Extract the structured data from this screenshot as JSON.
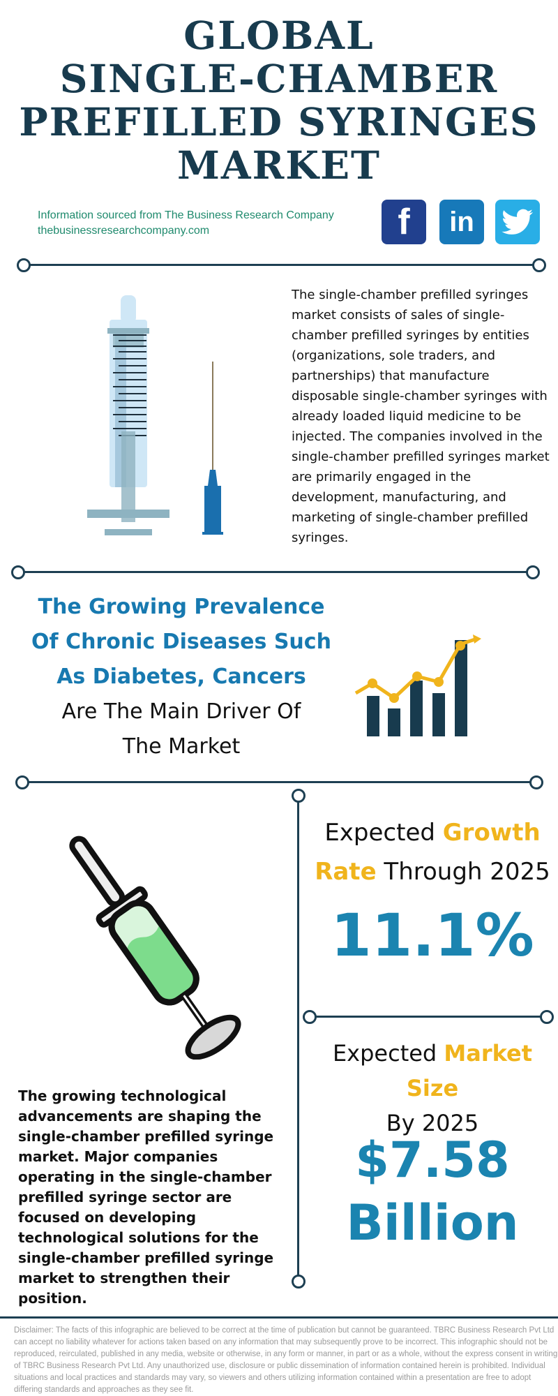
{
  "header": {
    "title_lines": [
      "GLOBAL",
      "SINGLE-CHAMBER",
      "PREFILLED SYRINGES",
      "MARKET"
    ],
    "source_line": "Information sourced from The Business Research Company",
    "source_url": "thebusinessresearchcompany.com"
  },
  "social": {
    "facebook": "f",
    "linkedin": "in",
    "twitter_icon": "twitter-bird-icon"
  },
  "description": "The single-chamber prefilled syringes market consists of sales of single-chamber prefilled syringes by entities (organizations, sole traders, and partnerships) that manufacture disposable single-chamber syringes with already loaded liquid medicine to be injected. The companies involved in the single-chamber prefilled syringes market are primarily engaged in the development, manufacturing, and marketing of single-chamber prefilled syringes.",
  "driver": {
    "highlight_lines": [
      "The Growing Prevalence",
      "Of Chronic Diseases Such",
      "As Diabetes, Cancers"
    ],
    "plain_lines": [
      "Are The Main Driver Of",
      "The Market"
    ]
  },
  "growth": {
    "label_pre": "Expected ",
    "label_highlight_1": "Growth",
    "label_highlight_2": "Rate",
    "label_post": " Through 2025",
    "value": "11.1%"
  },
  "market_size": {
    "label_pre": "Expected ",
    "label_highlight": "Market Size",
    "label_post": "By 2025",
    "value_line1": "$7.58",
    "value_line2": "Billion"
  },
  "technology_text": "The growing technological advancements are shaping the single-chamber prefilled syringe market. Major companies operating in the single-chamber prefilled syringe sector are focused on developing technological solutions for the single-chamber prefilled syringe market to strengthen their position.",
  "disclaimer": "Disclaimer: The facts of this infographic are believed to be correct at the time of publication but cannot be guaranteed. TBRC Business Research Pvt Ltd can accept no liability whatever for actions taken based on any information that may subsequently prove to be incorrect. This infographic should not be reproduced, reirculated, published in any media, website or otherwise, in any form or manner, in part or as a whole, without the express consent in writing of TBRC Business Research Pvt Ltd. Any unauthorized use, disclosure or public dissemination of information contained herein is prohibited. Individual situations and local practices and standards may vary, so viewers and others utilizing information contained within a presentation are free to adopt differing standards and approaches as they see fit.",
  "colors": {
    "navy": "#183b4e",
    "blue": "#1b84b0",
    "gold": "#f0b41c",
    "green_text": "#1f8a6d"
  }
}
